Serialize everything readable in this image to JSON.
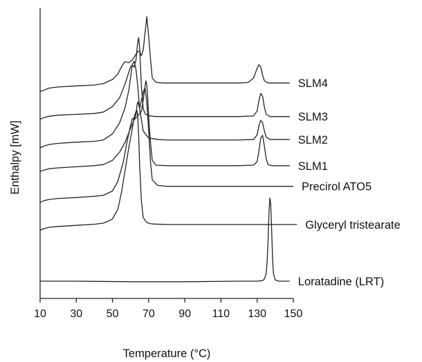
{
  "chart_data": {
    "type": "line",
    "title": "",
    "xlabel": "Temperature (°C)",
    "ylabel": "Enthalpy [mW]",
    "xlim": [
      10,
      150
    ],
    "xticks": [
      10,
      30,
      50,
      70,
      90,
      110,
      130,
      150
    ],
    "y_ticks_shown": false,
    "grid": false,
    "legend": "labels at right end of each trace",
    "line_color": "#222222",
    "series": [
      {
        "name": "SLM4",
        "x": [
          10,
          12,
          15,
          20,
          30,
          40,
          45,
          50,
          53,
          55,
          56,
          57,
          59,
          61,
          63,
          64,
          65,
          66,
          67,
          68,
          69,
          70,
          71,
          72,
          74,
          76,
          80,
          100,
          120,
          125,
          128,
          130,
          131,
          132,
          133,
          134,
          136,
          140,
          145,
          148
        ],
        "y": [
          7.42,
          7.46,
          7.54,
          7.58,
          7.62,
          7.65,
          7.7,
          7.85,
          8.05,
          8.3,
          8.42,
          8.48,
          8.45,
          8.55,
          8.75,
          8.85,
          8.87,
          8.7,
          8.9,
          9.5,
          10.1,
          9.4,
          8.6,
          7.9,
          7.75,
          7.73,
          7.72,
          7.72,
          7.72,
          7.74,
          7.9,
          8.25,
          8.38,
          8.3,
          8.0,
          7.8,
          7.72,
          7.72,
          7.72,
          7.72
        ]
      },
      {
        "name": "SLM3",
        "x": [
          10,
          12,
          15,
          20,
          30,
          40,
          45,
          50,
          54,
          57,
          60,
          61,
          62,
          63,
          63.5,
          64,
          64.5,
          65,
          65.5,
          66,
          67,
          68,
          70,
          74,
          80,
          100,
          120,
          128,
          130,
          131,
          132,
          133,
          134,
          135,
          137,
          140,
          145,
          148
        ],
        "y": [
          6.42,
          6.48,
          6.53,
          6.57,
          6.6,
          6.63,
          6.68,
          6.88,
          7.2,
          7.7,
          8.3,
          8.35,
          8.3,
          8.55,
          8.9,
          9.2,
          9.35,
          9.0,
          8.3,
          7.6,
          6.8,
          6.62,
          6.55,
          6.52,
          6.52,
          6.52,
          6.52,
          6.54,
          6.72,
          7.1,
          7.35,
          7.25,
          6.85,
          6.6,
          6.52,
          6.52,
          6.52,
          6.52
        ]
      },
      {
        "name": "SLM2",
        "x": [
          10,
          12,
          15,
          20,
          30,
          40,
          45,
          50,
          54,
          57,
          59,
          60,
          61,
          62,
          63,
          64,
          65,
          67,
          70,
          75,
          80,
          100,
          120,
          128,
          130,
          131,
          132,
          133,
          134,
          135,
          137,
          140,
          145,
          148
        ],
        "y": [
          5.4,
          5.46,
          5.52,
          5.56,
          5.6,
          5.63,
          5.68,
          5.9,
          6.3,
          6.85,
          7.45,
          7.9,
          8.4,
          8.5,
          8.2,
          7.6,
          6.8,
          6.0,
          5.75,
          5.7,
          5.68,
          5.68,
          5.68,
          5.7,
          5.86,
          6.2,
          6.38,
          6.3,
          6.0,
          5.78,
          5.7,
          5.7,
          5.7,
          5.7
        ]
      },
      {
        "name": "SLM1",
        "x": [
          10,
          12,
          15,
          20,
          30,
          40,
          45,
          50,
          54,
          57,
          60,
          62,
          64,
          66,
          67,
          68,
          68.5,
          69,
          69.5,
          70,
          71,
          72,
          74,
          80,
          100,
          120,
          128,
          130,
          131,
          132,
          133,
          134,
          135,
          136,
          138,
          140,
          145,
          148
        ],
        "y": [
          4.55,
          4.6,
          4.65,
          4.68,
          4.72,
          4.76,
          4.8,
          4.95,
          5.25,
          5.6,
          6.1,
          6.4,
          6.55,
          6.7,
          7.1,
          7.6,
          7.8,
          7.65,
          7.2,
          6.5,
          5.6,
          4.95,
          4.78,
          4.76,
          4.76,
          4.76,
          4.78,
          4.9,
          5.3,
          5.75,
          5.85,
          5.45,
          5.0,
          4.8,
          4.76,
          4.76,
          4.76,
          4.76
        ]
      },
      {
        "name": "Precirol ATO5",
        "x": [
          10,
          12,
          15,
          20,
          30,
          40,
          45,
          50,
          53,
          56,
          58,
          60,
          61,
          62,
          63,
          63.5,
          64,
          64.5,
          65,
          66,
          67,
          68,
          69,
          70,
          71,
          72,
          75,
          80,
          100,
          120,
          140,
          150
        ],
        "y": [
          3.45,
          3.5,
          3.55,
          3.58,
          3.62,
          3.66,
          3.7,
          3.85,
          4.2,
          4.9,
          5.6,
          6.2,
          6.45,
          6.42,
          6.6,
          6.9,
          7.05,
          6.95,
          6.8,
          7.1,
          7.4,
          7.55,
          7.05,
          6.0,
          4.9,
          4.25,
          4.05,
          4.02,
          4.02,
          4.02,
          4.02,
          4.02
        ]
      },
      {
        "name": "Glyceryl tristearate",
        "x": [
          10,
          12,
          15,
          20,
          30,
          40,
          45,
          48,
          50,
          53,
          55,
          57,
          59,
          61,
          62,
          63,
          63.5,
          64,
          64.5,
          65,
          66,
          67,
          69,
          72,
          80,
          100,
          120,
          140,
          152
        ],
        "y": [
          2.45,
          2.5,
          2.55,
          2.58,
          2.62,
          2.66,
          2.7,
          2.78,
          2.85,
          3.2,
          3.8,
          4.6,
          5.4,
          6.1,
          6.5,
          6.7,
          6.75,
          6.5,
          5.8,
          4.8,
          3.5,
          2.9,
          2.72,
          2.67,
          2.65,
          2.65,
          2.65,
          2.65,
          2.65
        ]
      },
      {
        "name": "Loratadine (LRT)",
        "x": [
          10,
          30,
          60,
          90,
          120,
          130,
          133,
          134,
          135,
          135.5,
          136,
          136.5,
          137,
          137.5,
          138,
          138.5,
          139,
          140,
          142,
          146,
          148
        ],
        "y": [
          0.62,
          0.62,
          0.6,
          0.6,
          0.62,
          0.62,
          0.64,
          0.7,
          0.9,
          1.3,
          2.0,
          3.0,
          3.6,
          3.4,
          2.5,
          1.5,
          0.9,
          0.66,
          0.62,
          0.62,
          0.62
        ]
      }
    ]
  }
}
